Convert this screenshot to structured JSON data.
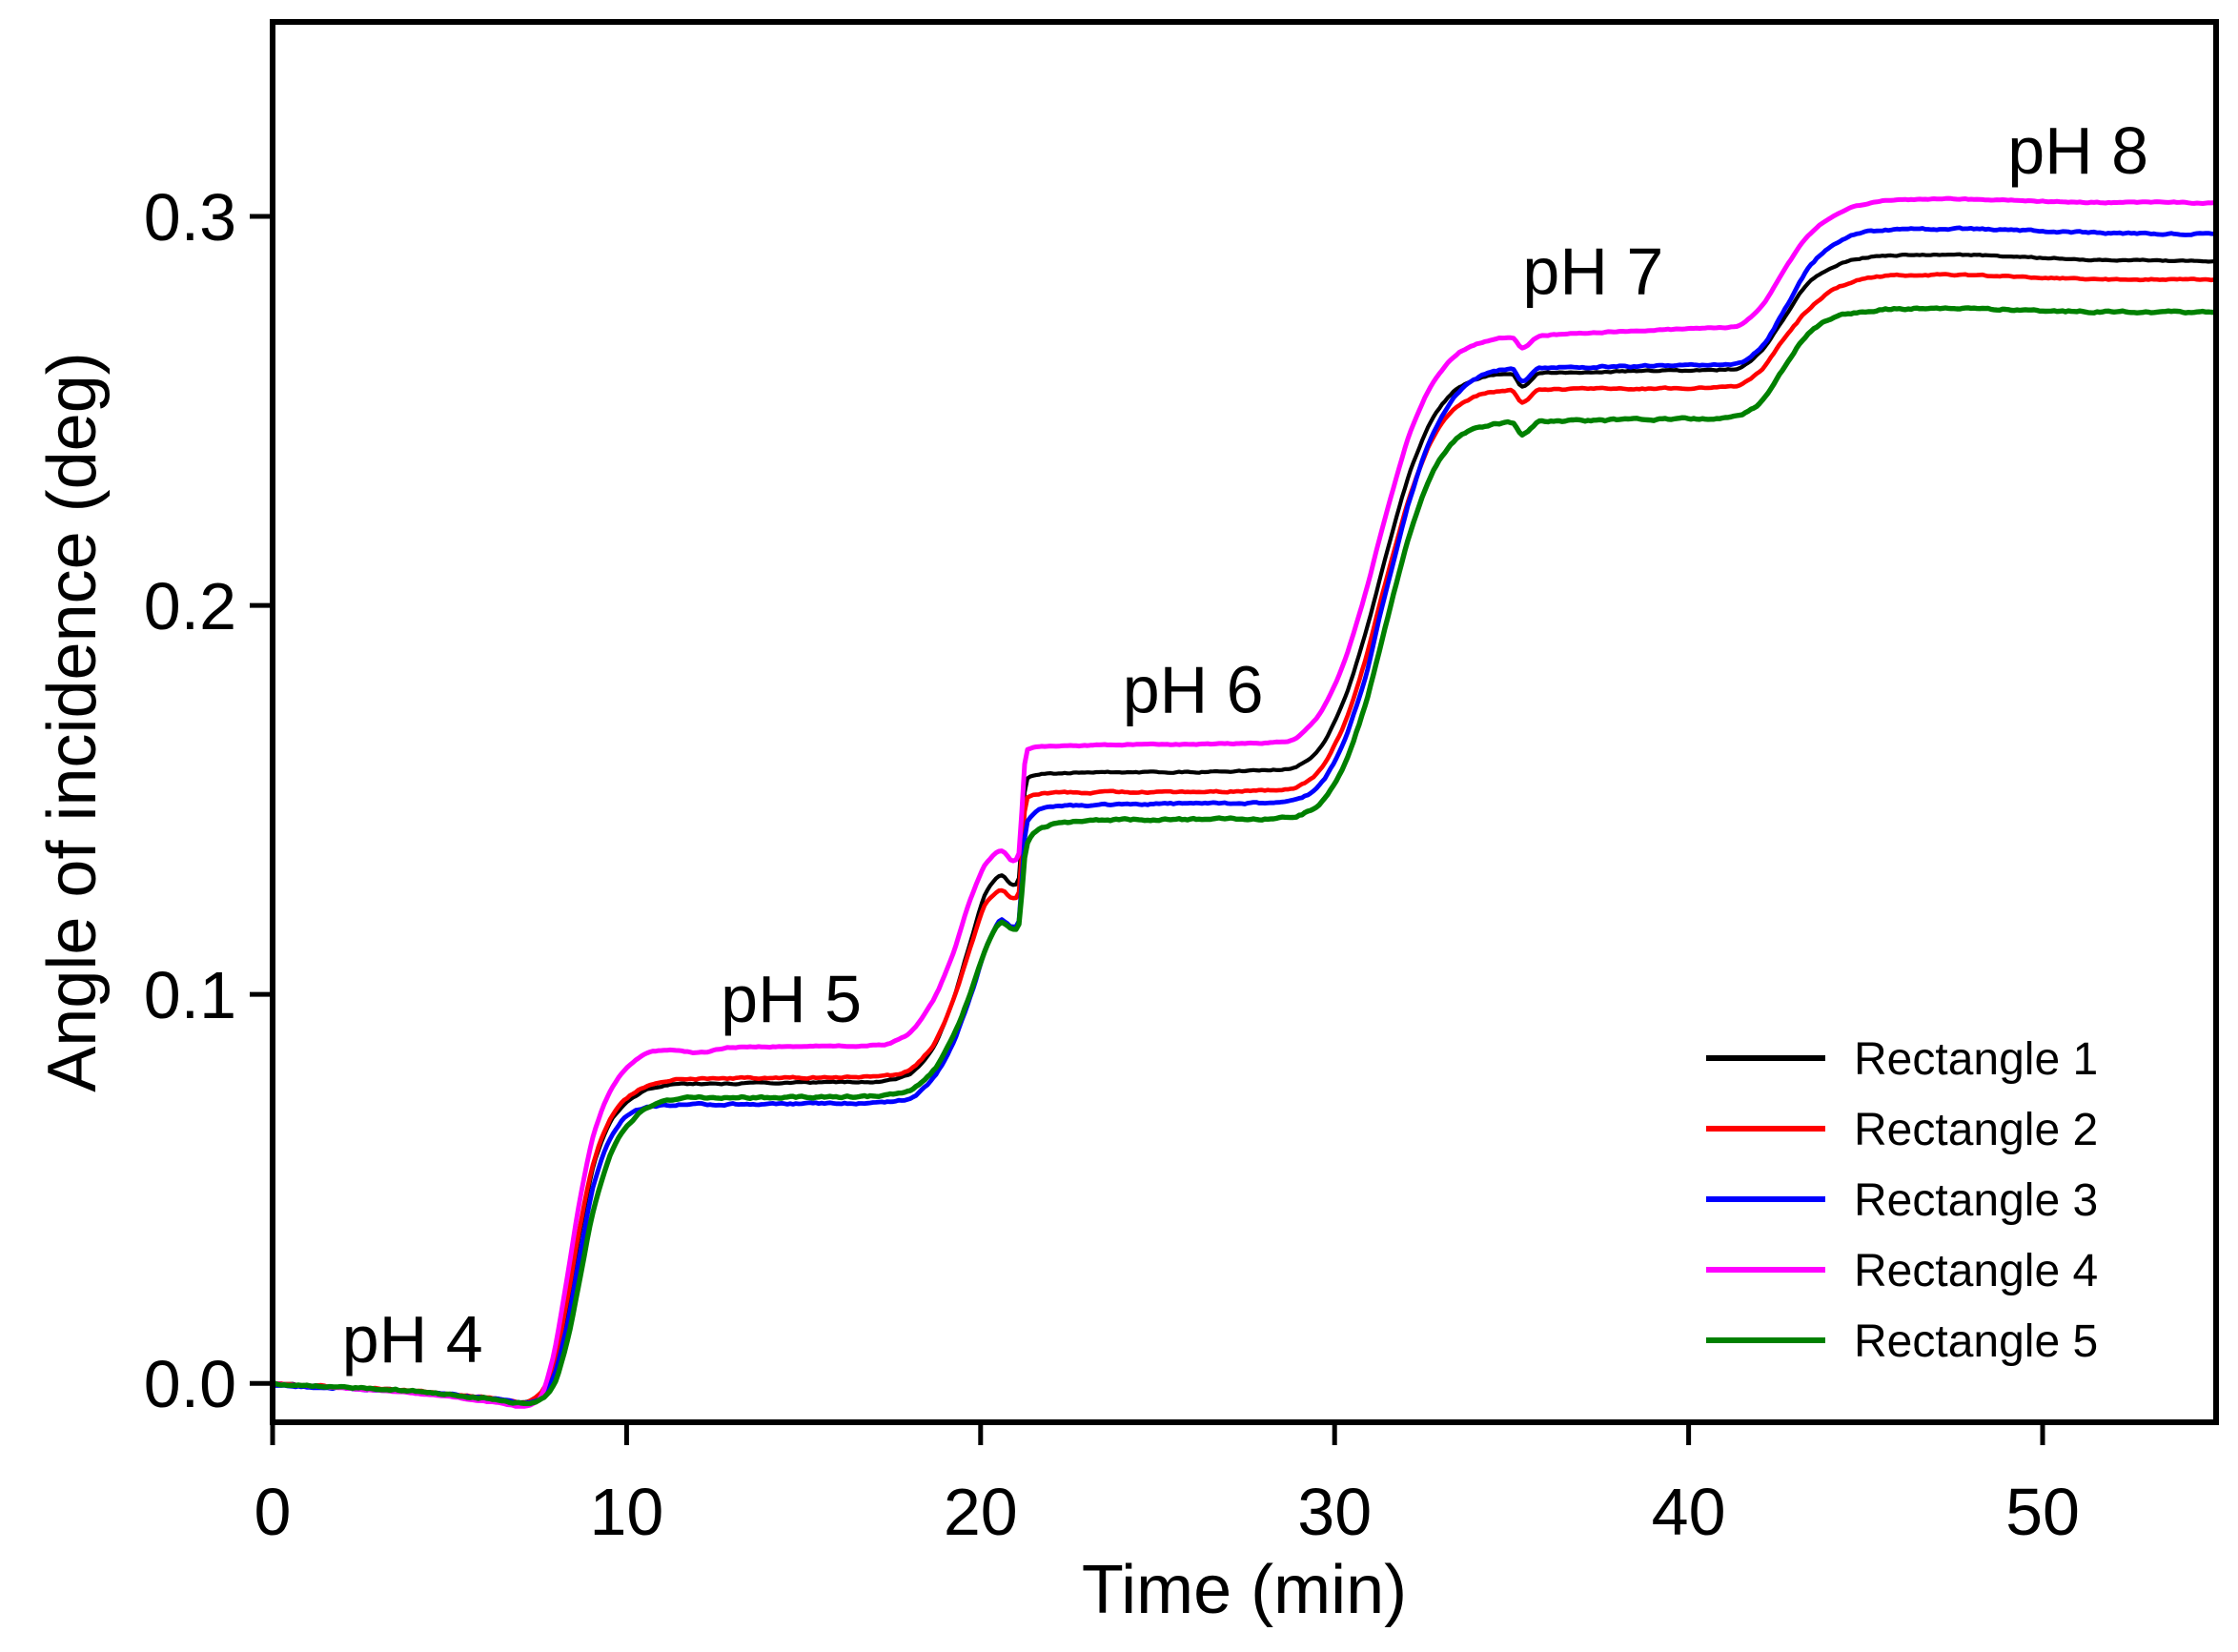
{
  "figure": {
    "background": "#ffffff"
  },
  "chart_data": {
    "type": "line",
    "title": "",
    "xlabel": "Time (min)",
    "ylabel": "Angle of incidence (deg)",
    "xlim": [
      0,
      54.9
    ],
    "ylim": [
      -0.01,
      0.35
    ],
    "grid": false,
    "legend_position": "bottom-right",
    "xticks": {
      "values": [
        0,
        10,
        20,
        30,
        40,
        50
      ],
      "labels": [
        "0",
        "10",
        "20",
        "30",
        "40",
        "50"
      ]
    },
    "yticks": {
      "values": [
        0.0,
        0.1,
        0.2,
        0.3
      ],
      "labels": [
        "0.0",
        "0.1",
        "0.2",
        "0.3"
      ]
    },
    "annotations": [
      {
        "text": "pH 4",
        "t": 3.95,
        "v": 0.0055
      },
      {
        "text": "pH 5",
        "t": 14.65,
        "v": 0.0929
      },
      {
        "text": "pH 6",
        "t": 26.0,
        "v": 0.1725
      },
      {
        "text": "pH 7",
        "t": 37.3,
        "v": 0.28
      },
      {
        "text": "pH 8",
        "t": 51.0,
        "v": 0.311
      }
    ],
    "t": [
      0,
      2,
      4,
      5.5,
      6.5,
      7.1,
      7.5,
      7.9,
      8.3,
      8.7,
      9.1,
      9.6,
      10.1,
      10.7,
      11.3,
      12,
      13,
      14.5,
      16,
      17.2,
      17.9,
      18.6,
      19.2,
      19.7,
      20.2,
      20.6,
      20.9,
      21.05,
      21.3,
      21.8,
      23,
      24.5,
      26,
      27.5,
      28.7,
      29.4,
      30.1,
      30.8,
      31.5,
      32.2,
      32.9,
      33.6,
      34.4,
      35.0,
      35.3,
      35.8,
      37,
      38.5,
      40,
      41.3,
      42,
      42.7,
      43.4,
      44.1,
      44.9,
      45.8,
      47.2,
      48.8,
      50.4,
      52,
      53.5,
      54.9
    ],
    "series": [
      {
        "name": "Rectangle 1",
        "color": "#000000",
        "width": 4.2,
        "noise": 1.4,
        "v": [
          0,
          -0.001,
          -0.002,
          -0.0032,
          -0.0042,
          -0.005,
          -0.0035,
          0.003,
          0.019,
          0.04,
          0.057,
          0.068,
          0.073,
          0.0758,
          0.0768,
          0.077,
          0.0771,
          0.0773,
          0.0774,
          0.0776,
          0.079,
          0.0855,
          0.098,
          0.113,
          0.127,
          0.1305,
          0.1282,
          0.1285,
          0.1555,
          0.1567,
          0.157,
          0.1571,
          0.1572,
          0.1574,
          0.158,
          0.1615,
          0.172,
          0.1905,
          0.2145,
          0.236,
          0.25,
          0.2565,
          0.259,
          0.2595,
          0.2563,
          0.2597,
          0.26,
          0.2602,
          0.2604,
          0.2608,
          0.265,
          0.274,
          0.283,
          0.2872,
          0.2893,
          0.29,
          0.2902,
          0.2898,
          0.2892,
          0.2888,
          0.2887,
          0.2885
        ]
      },
      {
        "name": "Rectangle 2",
        "color": "#ff0000",
        "width": 4.6,
        "noise": 1.6,
        "v": [
          0,
          -0.001,
          -0.002,
          -0.0032,
          -0.0042,
          -0.005,
          -0.0033,
          0.0034,
          0.0202,
          0.0412,
          0.058,
          0.0689,
          0.074,
          0.0769,
          0.078,
          0.0783,
          0.0784,
          0.0786,
          0.0787,
          0.0789,
          0.0802,
          0.0862,
          0.0978,
          0.1118,
          0.124,
          0.1268,
          0.1246,
          0.1249,
          0.1505,
          0.1517,
          0.1519,
          0.152,
          0.1521,
          0.1523,
          0.1528,
          0.156,
          0.166,
          0.184,
          0.208,
          0.23,
          0.245,
          0.252,
          0.2548,
          0.2552,
          0.2522,
          0.2554,
          0.2556,
          0.2557,
          0.2559,
          0.2562,
          0.2602,
          0.2685,
          0.2762,
          0.2812,
          0.2838,
          0.2848,
          0.285,
          0.2846,
          0.2841,
          0.2838,
          0.2838,
          0.2837
        ]
      },
      {
        "name": "Rectangle 3",
        "color": "#0000ff",
        "width": 4.8,
        "noise": 1.8,
        "v": [
          -0.0005,
          -0.0012,
          -0.0022,
          -0.0033,
          -0.0043,
          -0.005,
          -0.004,
          0.001,
          0.014,
          0.034,
          0.052,
          0.064,
          0.0695,
          0.0711,
          0.0716,
          0.0717,
          0.0718,
          0.0719,
          0.072,
          0.0722,
          0.073,
          0.0778,
          0.0872,
          0.0992,
          0.1128,
          0.119,
          0.1172,
          0.1175,
          0.144,
          0.1478,
          0.1486,
          0.1489,
          0.149,
          0.1491,
          0.1496,
          0.1522,
          0.1615,
          0.1795,
          0.2055,
          0.2295,
          0.2465,
          0.2558,
          0.2598,
          0.2608,
          0.2575,
          0.261,
          0.2613,
          0.2615,
          0.2617,
          0.262,
          0.2658,
          0.2758,
          0.2868,
          0.2928,
          0.2958,
          0.2966,
          0.2968,
          0.2966,
          0.2961,
          0.2957,
          0.2956,
          0.2955
        ]
      },
      {
        "name": "Rectangle 4",
        "color": "#ff00ff",
        "width": 5.0,
        "noise": 1.1,
        "v": [
          0,
          -0.0012,
          -0.0025,
          -0.004,
          -0.0052,
          -0.006,
          -0.0045,
          0.006,
          0.026,
          0.048,
          0.065,
          0.076,
          0.082,
          0.0852,
          0.0858,
          0.085,
          0.0864,
          0.0866,
          0.0867,
          0.087,
          0.0895,
          0.0975,
          0.11,
          0.124,
          0.1342,
          0.137,
          0.1344,
          0.1348,
          0.1628,
          0.1638,
          0.164,
          0.1642,
          0.1643,
          0.1645,
          0.1652,
          0.17,
          0.1815,
          0.201,
          0.225,
          0.246,
          0.259,
          0.2655,
          0.2682,
          0.269,
          0.2662,
          0.2692,
          0.27,
          0.2706,
          0.2711,
          0.2717,
          0.2762,
          0.2862,
          0.2952,
          0.3002,
          0.303,
          0.3042,
          0.3045,
          0.3042,
          0.3038,
          0.3036,
          0.3036,
          0.3034
        ]
      },
      {
        "name": "Rectangle 5",
        "color": "#008000",
        "width": 5.4,
        "noise": 2.1,
        "v": [
          0,
          -0.001,
          -0.002,
          -0.0033,
          -0.0044,
          -0.0052,
          -0.0046,
          -0.001,
          0.01,
          0.028,
          0.046,
          0.06,
          0.067,
          0.0715,
          0.073,
          0.0734,
          0.0735,
          0.0736,
          0.0737,
          0.0739,
          0.075,
          0.0797,
          0.0886,
          0.1,
          0.1128,
          0.1185,
          0.1168,
          0.117,
          0.1385,
          0.1432,
          0.1446,
          0.1449,
          0.145,
          0.1451,
          0.1455,
          0.1478,
          0.156,
          0.1725,
          0.197,
          0.2205,
          0.2365,
          0.2438,
          0.2463,
          0.247,
          0.244,
          0.2472,
          0.2475,
          0.2477,
          0.248,
          0.2484,
          0.252,
          0.2612,
          0.27,
          0.274,
          0.2756,
          0.2762,
          0.2763,
          0.2761,
          0.2757,
          0.2755,
          0.2755,
          0.2754
        ]
      }
    ]
  }
}
